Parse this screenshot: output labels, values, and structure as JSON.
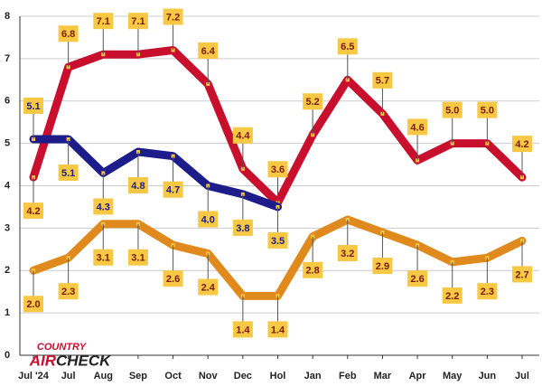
{
  "chart_data": {
    "type": "line",
    "logo": {
      "top": "COUNTRY",
      "left": "AIR",
      "right": "CHECK"
    },
    "categories": [
      "Jul '24",
      "Jul",
      "Aug",
      "Sep",
      "Oct",
      "Nov",
      "Dec",
      "Hol",
      "Jan",
      "Feb",
      "Mar",
      "Apr",
      "May",
      "Jun",
      "Jul"
    ],
    "series": [
      {
        "color": "#c8102e",
        "values": [
          4.2,
          6.8,
          7.1,
          7.1,
          7.2,
          6.4,
          4.4,
          3.6,
          5.2,
          6.5,
          5.7,
          4.6,
          5.0,
          5.0,
          4.2
        ],
        "value_labels": [
          "4.2",
          "6.8",
          "7.1",
          "7.1",
          "7.2",
          "6.4",
          "4.4",
          "3.6",
          "5.2",
          "6.5",
          "5.7",
          "4.6",
          "5.0",
          "5.0",
          "4.2"
        ]
      },
      {
        "color": "#1c1c8a",
        "values": [
          5.1,
          5.1,
          4.3,
          4.8,
          4.7,
          4.0,
          3.8,
          3.5,
          null,
          null,
          null,
          null,
          null,
          null,
          null
        ],
        "value_labels": [
          "5.1",
          "5.1",
          "4.3",
          "4.8",
          "4.7",
          "4.0",
          "3.8",
          "3.5",
          null,
          null,
          null,
          null,
          null,
          null,
          null
        ]
      },
      {
        "color": "#e08a1e",
        "values": [
          2.0,
          2.3,
          3.1,
          3.1,
          2.6,
          2.4,
          1.4,
          1.4,
          2.8,
          3.2,
          2.9,
          2.6,
          2.2,
          2.3,
          2.7
        ],
        "value_labels": [
          "2.0",
          "2.3",
          "3.1",
          "3.1",
          "2.6",
          "2.4",
          "1.4",
          "1.4",
          "2.8",
          "3.2",
          "2.9",
          "2.6",
          "2.2",
          "2.3",
          "2.7"
        ]
      }
    ],
    "ylim": [
      0,
      8
    ],
    "yticks": [
      0,
      1,
      2,
      3,
      4,
      5,
      6,
      7,
      8
    ],
    "grid": true,
    "label_color": "#f7c843"
  }
}
